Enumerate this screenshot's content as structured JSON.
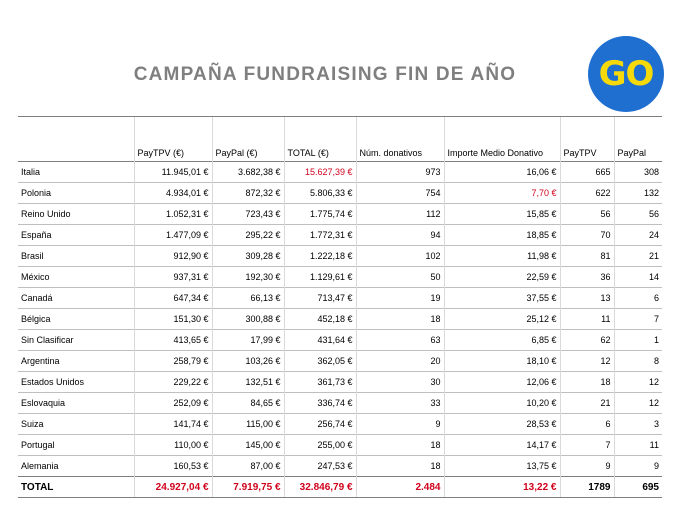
{
  "title": "CAMPAÑA FUNDRAISING FIN DE AÑO",
  "logo": "GO",
  "colors": {
    "highlight": "#d0021b",
    "title": "#7f7f7f",
    "logo_bg": "#1e6fd0",
    "logo_text": "#f5d90a"
  },
  "table": {
    "headers": [
      "",
      "PayTPV (€)",
      "PayPal (€)",
      "TOTAL (€)",
      "Núm. donativos",
      "Importe Medio Donativo",
      "PayTPV",
      "PayPal"
    ],
    "rows": [
      {
        "country": "Italia",
        "paytpv": "11.945,01 €",
        "paypal": "3.682,38 €",
        "total": "15.627,39 €",
        "num": "973",
        "medio": "16,06 €",
        "n_paytpv": "665",
        "n_paypal": "308"
      },
      {
        "country": "Polonia",
        "paytpv": "4.934,01 €",
        "paypal": "872,32 €",
        "total": "5.806,33 €",
        "num": "754",
        "medio": "7,70 €",
        "n_paytpv": "622",
        "n_paypal": "132"
      },
      {
        "country": "Reino Unido",
        "paytpv": "1.052,31 €",
        "paypal": "723,43 €",
        "total": "1.775,74 €",
        "num": "112",
        "medio": "15,85 €",
        "n_paytpv": "56",
        "n_paypal": "56"
      },
      {
        "country": "España",
        "paytpv": "1.477,09 €",
        "paypal": "295,22 €",
        "total": "1.772,31 €",
        "num": "94",
        "medio": "18,85 €",
        "n_paytpv": "70",
        "n_paypal": "24"
      },
      {
        "country": "Brasil",
        "paytpv": "912,90 €",
        "paypal": "309,28 €",
        "total": "1.222,18 €",
        "num": "102",
        "medio": "11,98 €",
        "n_paytpv": "81",
        "n_paypal": "21"
      },
      {
        "country": "México",
        "paytpv": "937,31 €",
        "paypal": "192,30 €",
        "total": "1.129,61 €",
        "num": "50",
        "medio": "22,59 €",
        "n_paytpv": "36",
        "n_paypal": "14"
      },
      {
        "country": "Canadá",
        "paytpv": "647,34 €",
        "paypal": "66,13 €",
        "total": "713,47 €",
        "num": "19",
        "medio": "37,55 €",
        "n_paytpv": "13",
        "n_paypal": "6"
      },
      {
        "country": "Bélgica",
        "paytpv": "151,30 €",
        "paypal": "300,88 €",
        "total": "452,18 €",
        "num": "18",
        "medio": "25,12 €",
        "n_paytpv": "11",
        "n_paypal": "7"
      },
      {
        "country": "Sin Clasificar",
        "paytpv": "413,65 €",
        "paypal": "17,99 €",
        "total": "431,64 €",
        "num": "63",
        "medio": "6,85 €",
        "n_paytpv": "62",
        "n_paypal": "1"
      },
      {
        "country": "Argentina",
        "paytpv": "258,79 €",
        "paypal": "103,26 €",
        "total": "362,05 €",
        "num": "20",
        "medio": "18,10 €",
        "n_paytpv": "12",
        "n_paypal": "8"
      },
      {
        "country": "Estados Unidos",
        "paytpv": "229,22 €",
        "paypal": "132,51 €",
        "total": "361,73 €",
        "num": "30",
        "medio": "12,06 €",
        "n_paytpv": "18",
        "n_paypal": "12"
      },
      {
        "country": "Eslovaquia",
        "paytpv": "252,09 €",
        "paypal": "84,65 €",
        "total": "336,74 €",
        "num": "33",
        "medio": "10,20 €",
        "n_paytpv": "21",
        "n_paypal": "12"
      },
      {
        "country": "Suiza",
        "paytpv": "141,74 €",
        "paypal": "115,00 €",
        "total": "256,74 €",
        "num": "9",
        "medio": "28,53 €",
        "n_paytpv": "6",
        "n_paypal": "3"
      },
      {
        "country": "Portugal",
        "paytpv": "110,00 €",
        "paypal": "145,00 €",
        "total": "255,00 €",
        "num": "18",
        "medio": "14,17 €",
        "n_paytpv": "7",
        "n_paypal": "11"
      },
      {
        "country": "Alemania",
        "paytpv": "160,53 €",
        "paypal": "87,00 €",
        "total": "247,53 €",
        "num": "18",
        "medio": "13,75 €",
        "n_paytpv": "9",
        "n_paypal": "9"
      }
    ],
    "total": {
      "label": "TOTAL",
      "paytpv": "24.927,04 €",
      "paypal": "7.919,75 €",
      "total": "32.846,79 €",
      "num": "2.484",
      "medio": "13,22 €",
      "n_paytpv": "1789",
      "n_paypal": "695"
    }
  }
}
